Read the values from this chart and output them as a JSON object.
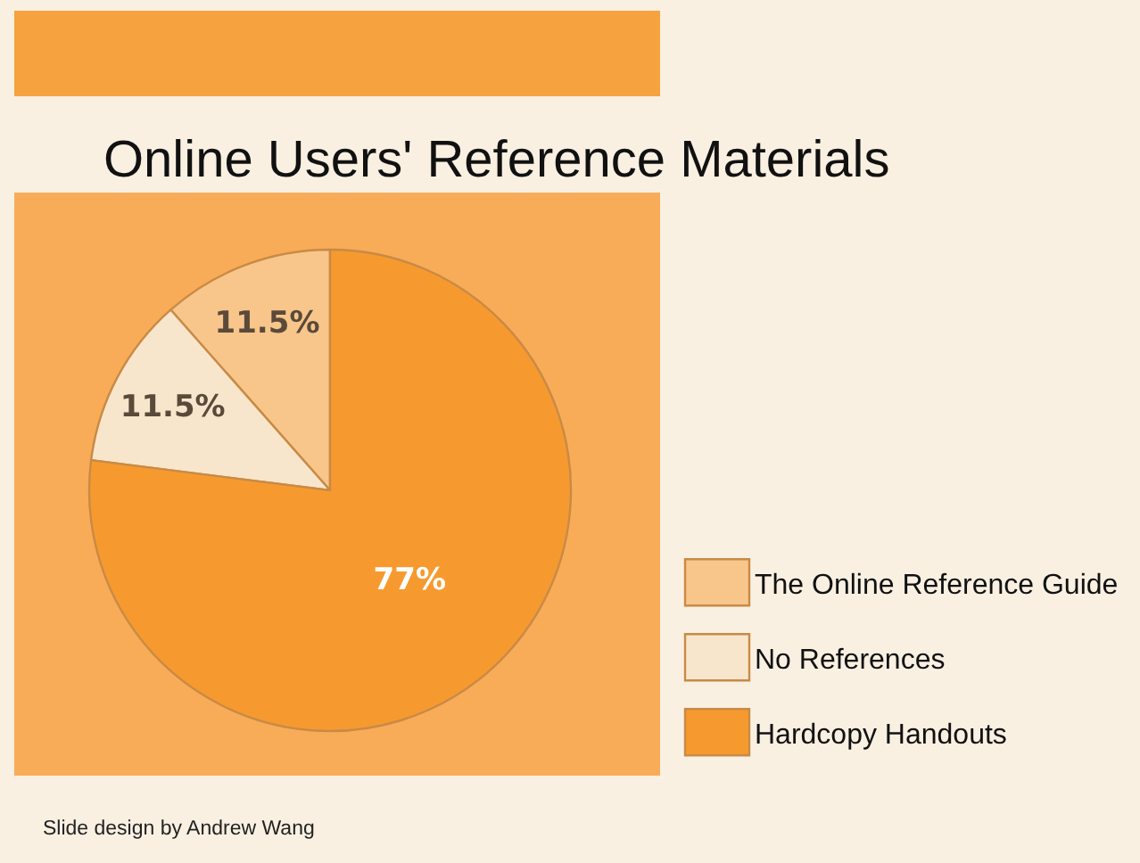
{
  "chart_data": {
    "type": "pie",
    "title": "Online Users' Reference Materials",
    "categories": [
      "The Online Reference Guide",
      "No References",
      "Hardcopy Handouts"
    ],
    "values": [
      11.5,
      11.5,
      77
    ],
    "colors": [
      "#f8c68a",
      "#f8e6cc",
      "#f69a30"
    ],
    "value_labels": [
      "11.5%",
      "11.5%",
      "77%"
    ],
    "legend": "right",
    "annotations": [
      "Slide design by Andrew Wang"
    ]
  }
}
